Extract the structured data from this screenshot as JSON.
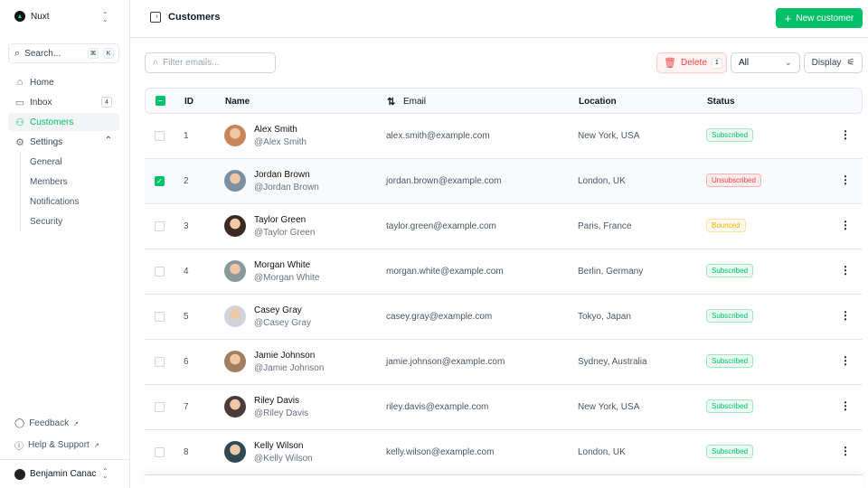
{
  "sidebar": {
    "brand": "Nuxt",
    "search": "Search...",
    "kbd": [
      "⌘",
      "K"
    ],
    "nav": [
      {
        "label": "Home",
        "icon": "home-icon"
      },
      {
        "label": "Inbox",
        "icon": "inbox-icon",
        "badge": "4"
      },
      {
        "label": "Customers",
        "icon": "users-icon",
        "active": true
      },
      {
        "label": "Settings",
        "icon": "gear-icon"
      }
    ],
    "settings_children": [
      "General",
      "Members",
      "Notifications",
      "Security"
    ],
    "footer": [
      "Feedback",
      "Help & Support"
    ],
    "user": "Benjamin Canac"
  },
  "header": {
    "title": "Customers",
    "new_button": "New customer"
  },
  "toolbar": {
    "filter_placeholder": "Filter emails...",
    "delete": "Delete",
    "delete_count": "1",
    "status_filter": "All",
    "display": "Display"
  },
  "table": {
    "columns": [
      "ID",
      "Name",
      "Email",
      "Location",
      "Status"
    ],
    "rows": [
      {
        "id": "1",
        "name": "Alex Smith",
        "handle": "@Alex Smith",
        "email": "alex.smith@example.com",
        "location": "New York, USA",
        "status": "Subscribed",
        "checked": false,
        "avatar": "#c9855a"
      },
      {
        "id": "2",
        "name": "Jordan Brown",
        "handle": "@Jordan Brown",
        "email": "jordan.brown@example.com",
        "location": "London, UK",
        "status": "Unsubscribed",
        "checked": true,
        "avatar": "#7c8fa3"
      },
      {
        "id": "3",
        "name": "Taylor Green",
        "handle": "@Taylor Green",
        "email": "taylor.green@example.com",
        "location": "Paris, France",
        "status": "Bounced",
        "checked": false,
        "avatar": "#3b2a22"
      },
      {
        "id": "4",
        "name": "Morgan White",
        "handle": "@Morgan White",
        "email": "morgan.white@example.com",
        "location": "Berlin, Germany",
        "status": "Subscribed",
        "checked": false,
        "avatar": "#8a9a9a"
      },
      {
        "id": "5",
        "name": "Casey Gray",
        "handle": "@Casey Gray",
        "email": "casey.gray@example.com",
        "location": "Tokyo, Japan",
        "status": "Subscribed",
        "checked": false,
        "avatar": "#d1d5db"
      },
      {
        "id": "6",
        "name": "Jamie Johnson",
        "handle": "@Jamie Johnson",
        "email": "jamie.johnson@example.com",
        "location": "Sydney, Australia",
        "status": "Subscribed",
        "checked": false,
        "avatar": "#a08060"
      },
      {
        "id": "7",
        "name": "Riley Davis",
        "handle": "@Riley Davis",
        "email": "riley.davis@example.com",
        "location": "New York, USA",
        "status": "Subscribed",
        "checked": false,
        "avatar": "#4a3a3a"
      },
      {
        "id": "8",
        "name": "Kelly Wilson",
        "handle": "@Kelly Wilson",
        "email": "kelly.wilson@example.com",
        "location": "London, UK",
        "status": "Subscribed",
        "checked": false,
        "avatar": "#2f4a55"
      }
    ]
  },
  "status_colors": {
    "Subscribed": "#00c16a",
    "Unsubscribed": "#ef4444",
    "Bounced": "#eab308"
  },
  "accent": "#00c16a"
}
